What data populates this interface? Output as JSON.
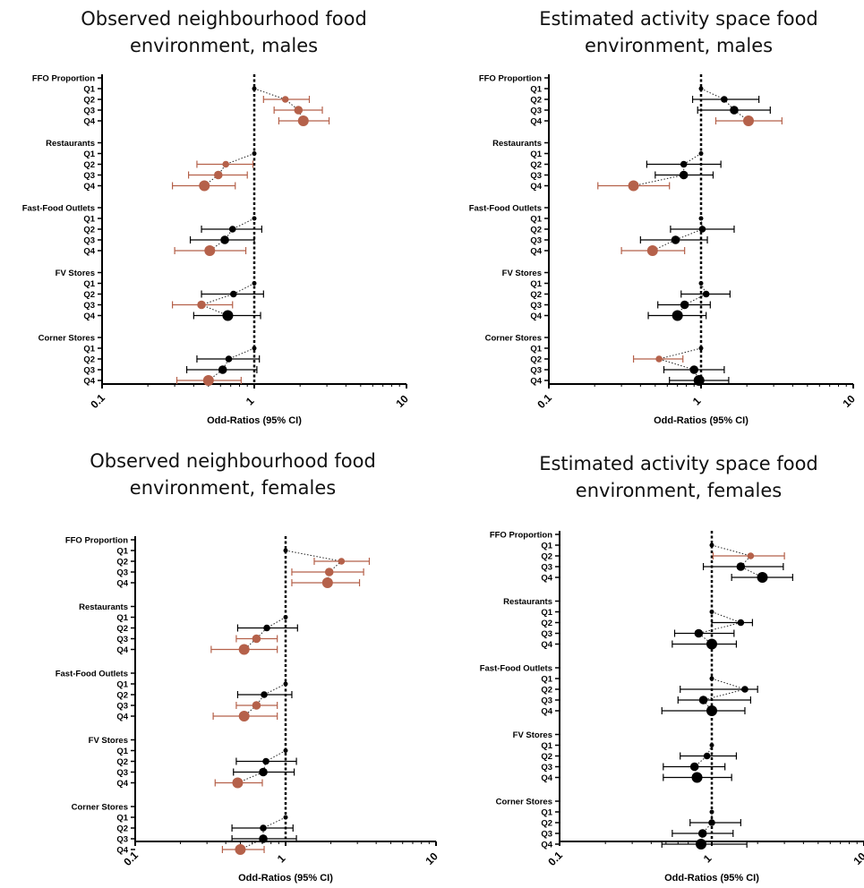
{
  "panels": [
    {
      "title_line1": "Observed neighbourhood food",
      "title_line2": "environment, males"
    },
    {
      "title_line1": "Estimated activity space food",
      "title_line2": "environment, males"
    },
    {
      "title_line1": "Observed neighbourhood food",
      "title_line2": "environment, females"
    },
    {
      "title_line1": "Estimated activity space food",
      "title_line2": "environment, females"
    }
  ],
  "colors": {
    "significant": "#b5614a",
    "nonsignificant": "#000000"
  },
  "chart_data": [
    {
      "type": "scatter",
      "title": "Observed neighbourhood food environment, males",
      "xlabel": "Odd-Ratios (95% CI)",
      "xscale": "log",
      "xlim": [
        0.1,
        10
      ],
      "xticks": [
        "0.1",
        "1",
        "10"
      ],
      "reference_line": 1,
      "groups": [
        {
          "name": "FFO Proportion",
          "quartiles": [
            "Q1",
            "Q2",
            "Q3",
            "Q4"
          ],
          "or": [
            1.0,
            1.6,
            1.95,
            2.1
          ],
          "lo": [
            1.0,
            1.15,
            1.35,
            1.45
          ],
          "hi": [
            1.0,
            2.3,
            2.8,
            3.1
          ],
          "significant": [
            false,
            true,
            true,
            true
          ]
        },
        {
          "name": "Restaurants",
          "quartiles": [
            "Q1",
            "Q2",
            "Q3",
            "Q4"
          ],
          "or": [
            1.0,
            0.65,
            0.58,
            0.47
          ],
          "lo": [
            1.0,
            0.42,
            0.37,
            0.29
          ],
          "hi": [
            1.0,
            0.98,
            0.9,
            0.75
          ],
          "significant": [
            false,
            true,
            true,
            true
          ]
        },
        {
          "name": "Fast-Food Outlets",
          "quartiles": [
            "Q1",
            "Q2",
            "Q3",
            "Q4"
          ],
          "or": [
            1.0,
            0.72,
            0.64,
            0.51
          ],
          "lo": [
            1.0,
            0.45,
            0.38,
            0.3
          ],
          "hi": [
            1.0,
            1.12,
            1.0,
            0.88
          ],
          "significant": [
            false,
            false,
            false,
            true
          ]
        },
        {
          "name": "FV Stores",
          "quartiles": [
            "Q1",
            "Q2",
            "Q3",
            "Q4"
          ],
          "or": [
            1.0,
            0.73,
            0.45,
            0.67
          ],
          "lo": [
            1.0,
            0.45,
            0.29,
            0.4
          ],
          "hi": [
            1.0,
            1.15,
            0.72,
            1.1
          ],
          "significant": [
            false,
            false,
            true,
            false
          ]
        },
        {
          "name": "Corner Stores",
          "quartiles": [
            "Q1",
            "Q2",
            "Q3",
            "Q4"
          ],
          "or": [
            1.0,
            0.68,
            0.62,
            0.5
          ],
          "lo": [
            1.0,
            0.42,
            0.36,
            0.31
          ],
          "hi": [
            1.0,
            1.08,
            1.04,
            0.82
          ],
          "significant": [
            false,
            false,
            false,
            true
          ]
        }
      ]
    },
    {
      "type": "scatter",
      "title": "Estimated activity space food environment, males",
      "xlabel": "Odd-Ratios (95% CI)",
      "xscale": "log",
      "xlim": [
        0.1,
        10
      ],
      "xticks": [
        "0.1",
        "1",
        "10"
      ],
      "reference_line": 1,
      "groups": [
        {
          "name": "FFO Proportion",
          "quartiles": [
            "Q1",
            "Q2",
            "Q3",
            "Q4"
          ],
          "or": [
            1.0,
            1.42,
            1.65,
            2.05
          ],
          "lo": [
            1.0,
            0.88,
            0.95,
            1.25
          ],
          "hi": [
            1.0,
            2.4,
            2.85,
            3.4
          ],
          "significant": [
            false,
            false,
            false,
            true
          ]
        },
        {
          "name": "Restaurants",
          "quartiles": [
            "Q1",
            "Q2",
            "Q3",
            "Q4"
          ],
          "or": [
            1.0,
            0.77,
            0.77,
            0.36
          ],
          "lo": [
            1.0,
            0.44,
            0.5,
            0.21
          ],
          "hi": [
            1.0,
            1.35,
            1.2,
            0.62
          ],
          "significant": [
            false,
            false,
            false,
            true
          ]
        },
        {
          "name": "Fast-Food Outlets",
          "quartiles": [
            "Q1",
            "Q2",
            "Q3",
            "Q4"
          ],
          "or": [
            1.0,
            1.02,
            0.68,
            0.48
          ],
          "lo": [
            1.0,
            0.63,
            0.4,
            0.3
          ],
          "hi": [
            1.0,
            1.65,
            1.1,
            0.78
          ],
          "significant": [
            false,
            false,
            false,
            true
          ]
        },
        {
          "name": "FV Stores",
          "quartiles": [
            "Q1",
            "Q2",
            "Q3",
            "Q4"
          ],
          "or": [
            1.0,
            1.08,
            0.78,
            0.7
          ],
          "lo": [
            1.0,
            0.74,
            0.52,
            0.45
          ],
          "hi": [
            1.0,
            1.55,
            1.15,
            1.08
          ],
          "significant": [
            false,
            false,
            false,
            false
          ]
        },
        {
          "name": "Corner Stores",
          "quartiles": [
            "Q1",
            "Q2",
            "Q3",
            "Q4"
          ],
          "or": [
            1.0,
            0.53,
            0.9,
            0.97
          ],
          "lo": [
            1.0,
            0.36,
            0.57,
            0.62
          ],
          "hi": [
            1.0,
            0.76,
            1.42,
            1.52
          ],
          "significant": [
            false,
            true,
            false,
            false
          ]
        }
      ]
    },
    {
      "type": "scatter",
      "title": "Observed neighbourhood food environment, females",
      "xlabel": "Odd-Ratios (95% CI)",
      "xscale": "log",
      "xlim": [
        0.1,
        10
      ],
      "xticks": [
        "0.1",
        "1",
        "10"
      ],
      "reference_line": 1,
      "groups": [
        {
          "name": "FFO Proportion",
          "quartiles": [
            "Q1",
            "Q2",
            "Q3",
            "Q4"
          ],
          "or": [
            1.0,
            2.35,
            1.95,
            1.9
          ],
          "lo": [
            1.0,
            1.55,
            1.1,
            1.1
          ],
          "hi": [
            1.0,
            3.6,
            3.3,
            3.1
          ],
          "significant": [
            false,
            true,
            true,
            true
          ]
        },
        {
          "name": "Restaurants",
          "quartiles": [
            "Q1",
            "Q2",
            "Q3",
            "Q4"
          ],
          "or": [
            1.0,
            0.75,
            0.64,
            0.53
          ],
          "lo": [
            1.0,
            0.48,
            0.47,
            0.32
          ],
          "hi": [
            1.0,
            1.2,
            0.88,
            0.88
          ],
          "significant": [
            false,
            false,
            true,
            true
          ]
        },
        {
          "name": "Fast-Food Outlets",
          "quartiles": [
            "Q1",
            "Q2",
            "Q3",
            "Q4"
          ],
          "or": [
            1.0,
            0.72,
            0.64,
            0.53
          ],
          "lo": [
            1.0,
            0.48,
            0.47,
            0.33
          ],
          "hi": [
            1.0,
            1.1,
            0.88,
            0.88
          ],
          "significant": [
            false,
            false,
            true,
            true
          ]
        },
        {
          "name": "FV Stores",
          "quartiles": [
            "Q1",
            "Q2",
            "Q3",
            "Q4"
          ],
          "or": [
            1.0,
            0.74,
            0.71,
            0.48
          ],
          "lo": [
            1.0,
            0.47,
            0.45,
            0.34
          ],
          "hi": [
            1.0,
            1.18,
            1.14,
            0.7
          ],
          "significant": [
            false,
            false,
            false,
            true
          ]
        },
        {
          "name": "Corner Stores",
          "quartiles": [
            "Q1",
            "Q2",
            "Q3",
            "Q4"
          ],
          "or": [
            1.0,
            0.71,
            0.71,
            0.5
          ],
          "lo": [
            1.0,
            0.44,
            0.44,
            0.38
          ],
          "hi": [
            1.0,
            1.12,
            1.18,
            0.72
          ],
          "significant": [
            false,
            false,
            false,
            true
          ]
        }
      ]
    },
    {
      "type": "scatter",
      "title": "Estimated activity space food environment, females",
      "xlabel": "Odd-Ratios (95% CI)",
      "xscale": "log",
      "xlim": [
        0.1,
        10
      ],
      "xticks": [
        "0.1",
        "1",
        "10"
      ],
      "reference_line": 1,
      "groups": [
        {
          "name": "FFO Proportion",
          "quartiles": [
            "Q1",
            "Q2",
            "Q3",
            "Q4"
          ],
          "or": [
            1.0,
            1.8,
            1.55,
            2.15
          ],
          "lo": [
            1.0,
            1.02,
            0.88,
            1.35
          ],
          "hi": [
            1.0,
            3.0,
            2.95,
            3.4
          ],
          "significant": [
            false,
            true,
            false,
            false
          ]
        },
        {
          "name": "Restaurants",
          "quartiles": [
            "Q1",
            "Q2",
            "Q3",
            "Q4"
          ],
          "or": [
            1.0,
            1.55,
            0.82,
            1.0
          ],
          "lo": [
            1.0,
            1.0,
            0.57,
            0.55
          ],
          "hi": [
            1.0,
            1.85,
            1.4,
            1.45
          ],
          "significant": [
            false,
            false,
            false,
            false
          ]
        },
        {
          "name": "Fast-Food Outlets",
          "quartiles": [
            "Q1",
            "Q2",
            "Q3",
            "Q4"
          ],
          "or": [
            1.0,
            1.65,
            0.88,
            1.0
          ],
          "lo": [
            1.0,
            0.62,
            0.6,
            0.47
          ],
          "hi": [
            1.0,
            2.0,
            1.8,
            1.65
          ],
          "significant": [
            false,
            false,
            false,
            false
          ]
        },
        {
          "name": "FV Stores",
          "quartiles": [
            "Q1",
            "Q2",
            "Q3",
            "Q4"
          ],
          "or": [
            1.0,
            0.93,
            0.77,
            0.8
          ],
          "lo": [
            1.0,
            0.62,
            0.48,
            0.48
          ],
          "hi": [
            1.0,
            1.45,
            1.22,
            1.35
          ],
          "significant": [
            false,
            false,
            false,
            false
          ]
        },
        {
          "name": "Corner Stores",
          "quartiles": [
            "Q1",
            "Q2",
            "Q3",
            "Q4"
          ],
          "or": [
            1.0,
            1.0,
            0.87,
            0.85
          ],
          "lo": [
            1.0,
            0.72,
            0.55,
            0.47
          ],
          "hi": [
            1.0,
            1.55,
            1.38,
            1.7
          ],
          "significant": [
            false,
            false,
            false,
            false
          ]
        }
      ]
    }
  ]
}
